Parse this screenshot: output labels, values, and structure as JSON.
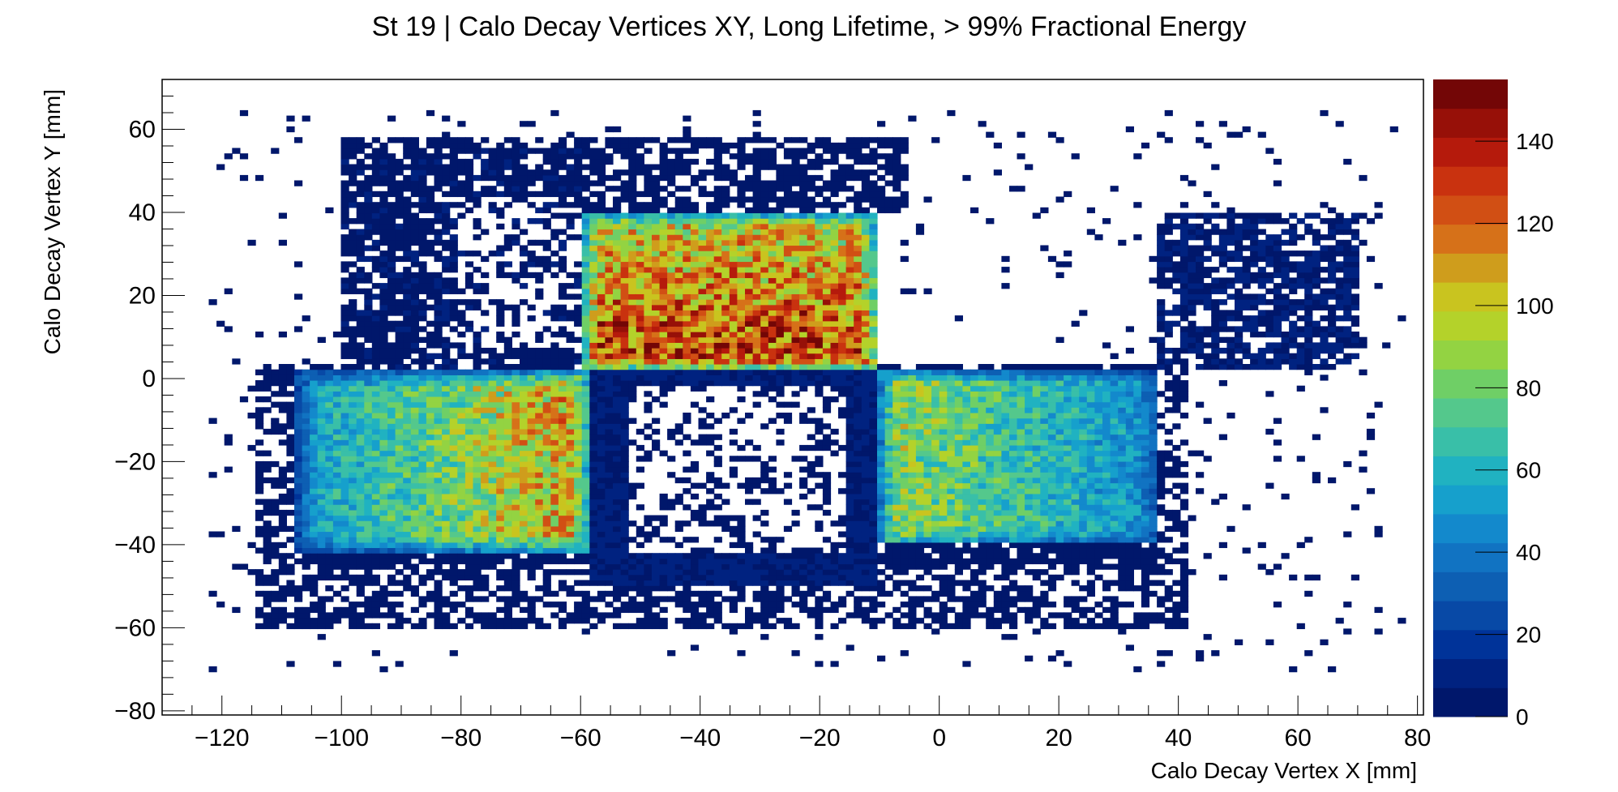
{
  "chart_data": {
    "type": "heatmap",
    "title": "St 19 | Calo Decay Vertices XY, Long Lifetime, > 99% Fractional Energy",
    "xlabel": "Calo Decay Vertex X [mm]",
    "ylabel": "Calo Decay Vertex Y [mm]",
    "xlim": [
      -130,
      81
    ],
    "ylim": [
      -81,
      72
    ],
    "x_ticks": [
      -120,
      -100,
      -80,
      -60,
      -40,
      -20,
      0,
      20,
      40,
      60,
      80
    ],
    "y_ticks": [
      -80,
      -60,
      -40,
      -20,
      0,
      20,
      40,
      60
    ],
    "z_range": [
      0,
      155
    ],
    "z_ticks": [
      0,
      20,
      40,
      60,
      80,
      100,
      120,
      140
    ],
    "grid": false,
    "colorbar": "right",
    "palette": [
      "#00176b",
      "#002280",
      "#003399",
      "#0849a6",
      "#0d5fb3",
      "#1173c2",
      "#1389cc",
      "#16a0cc",
      "#20b2c1",
      "#39bfa8",
      "#54c88c",
      "#6fcf66",
      "#93d342",
      "#b4d22a",
      "#c9c41f",
      "#cf9d1c",
      "#d67119",
      "#d14f14",
      "#c9320f",
      "#b51a0c",
      "#971008",
      "#730606"
    ],
    "regions": [
      {
        "x": [
          -60,
          -10
        ],
        "y": [
          2,
          40
        ],
        "approx_peak": 130,
        "description_ref": "upper-center"
      },
      {
        "x": [
          -108,
          -58
        ],
        "y": [
          -42,
          2
        ],
        "approx_peak": 110,
        "description_ref": "lower-left"
      },
      {
        "x": [
          -10,
          37
        ],
        "y": [
          -40,
          2
        ],
        "approx_peak": 90,
        "description_ref": "lower-right"
      },
      {
        "x": [
          -58,
          -10
        ],
        "y": [
          -50,
          2
        ],
        "approx_peak": 10,
        "description_ref": "lower-center"
      },
      {
        "x": [
          -100,
          -60
        ],
        "y": [
          2,
          55
        ],
        "approx_peak": 8,
        "description_ref": "upper-left"
      },
      {
        "x": [
          37,
          70
        ],
        "y": [
          2,
          40
        ],
        "approx_peak": 12,
        "description_ref": "right-block"
      }
    ]
  }
}
